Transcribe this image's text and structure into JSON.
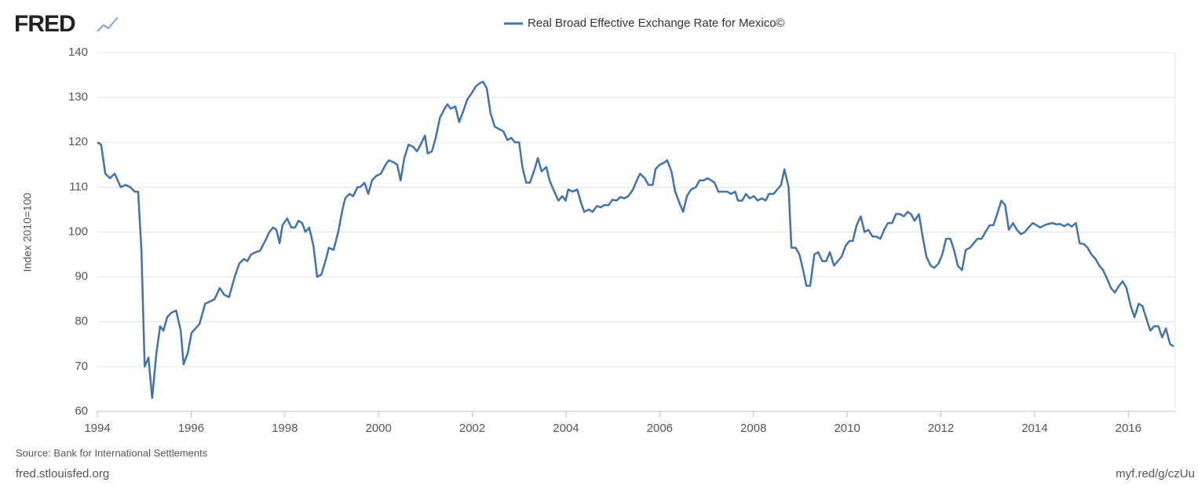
{
  "header": {
    "logo": "FRED"
  },
  "chart_data": {
    "type": "line",
    "y_label": "Index 2010=100",
    "x": [
      1994.0,
      1994.08,
      1994.17,
      1994.27,
      1994.37,
      1994.5,
      1994.6,
      1994.7,
      1994.8,
      1994.87,
      1994.94,
      1995.01,
      1995.09,
      1995.17,
      1995.26,
      1995.34,
      1995.41,
      1995.49,
      1995.58,
      1995.68,
      1995.78,
      1995.84,
      1995.93,
      1996.01,
      1996.18,
      1996.3,
      1996.4,
      1996.5,
      1996.61,
      1996.71,
      1996.81,
      1996.93,
      1997.03,
      1997.13,
      1997.2,
      1997.28,
      1997.38,
      1997.47,
      1997.58,
      1997.67,
      1997.75,
      1997.82,
      1997.89,
      1997.95,
      1998.05,
      1998.14,
      1998.22,
      1998.29,
      1998.37,
      1998.44,
      1998.52,
      1998.61,
      1998.69,
      1998.78,
      1998.88,
      1998.94,
      1999.04,
      1999.14,
      1999.23,
      1999.29,
      1999.38,
      1999.46,
      1999.55,
      1999.61,
      1999.7,
      1999.78,
      1999.86,
      1999.95,
      2000.05,
      2000.15,
      2000.22,
      2000.33,
      2000.4,
      2000.47,
      2000.55,
      2000.64,
      2000.74,
      2000.82,
      2000.9,
      2000.99,
      2001.05,
      2001.14,
      2001.22,
      2001.31,
      2001.41,
      2001.47,
      2001.54,
      2001.64,
      2001.72,
      2001.81,
      2001.89,
      2001.99,
      2002.08,
      2002.16,
      2002.23,
      2002.31,
      2002.39,
      2002.48,
      2002.56,
      2002.66,
      2002.75,
      2002.83,
      2002.91,
      2003.0,
      2003.07,
      2003.15,
      2003.23,
      2003.33,
      2003.4,
      2003.48,
      2003.58,
      2003.65,
      2003.75,
      2003.84,
      2003.92,
      2003.99,
      2004.05,
      2004.14,
      2004.24,
      2004.32,
      2004.39,
      2004.49,
      2004.57,
      2004.66,
      2004.74,
      2004.82,
      2004.91,
      2004.99,
      2005.08,
      2005.16,
      2005.24,
      2005.33,
      2005.43,
      2005.51,
      2005.58,
      2005.68,
      2005.76,
      2005.85,
      2005.91,
      2006.0,
      2006.1,
      2006.16,
      2006.25,
      2006.33,
      2006.42,
      2006.5,
      2006.58,
      2006.67,
      2006.77,
      2006.85,
      2006.94,
      2007.02,
      2007.1,
      2007.17,
      2007.25,
      2007.34,
      2007.44,
      2007.52,
      2007.61,
      2007.67,
      2007.76,
      2007.84,
      2007.92,
      2008.01,
      2008.09,
      2008.18,
      2008.26,
      2008.33,
      2008.43,
      2008.51,
      2008.59,
      2008.66,
      2008.75,
      2008.81,
      2008.9,
      2008.98,
      2009.05,
      2009.13,
      2009.21,
      2009.3,
      2009.38,
      2009.47,
      2009.55,
      2009.63,
      2009.72,
      2009.8,
      2009.88,
      2009.97,
      2010.05,
      2010.12,
      2010.2,
      2010.29,
      2010.37,
      2010.45,
      2010.54,
      2010.62,
      2010.71,
      2010.79,
      2010.87,
      2010.96,
      2011.04,
      2011.12,
      2011.21,
      2011.29,
      2011.36,
      2011.44,
      2011.53,
      2011.61,
      2011.69,
      2011.78,
      2011.86,
      2011.95,
      2012.03,
      2012.11,
      2012.2,
      2012.28,
      2012.36,
      2012.45,
      2012.53,
      2012.62,
      2012.7,
      2012.78,
      2012.87,
      2012.95,
      2013.04,
      2013.12,
      2013.2,
      2013.29,
      2013.37,
      2013.45,
      2013.54,
      2013.62,
      2013.71,
      2013.79,
      2013.87,
      2013.96,
      2014.04,
      2014.12,
      2014.21,
      2014.29,
      2014.38,
      2014.46,
      2014.54,
      2014.63,
      2014.71,
      2014.79,
      2014.88,
      2014.96,
      2015.05,
      2015.13,
      2015.21,
      2015.3,
      2015.38,
      2015.46,
      2015.55,
      2015.63,
      2015.71,
      2015.8,
      2015.88,
      2015.96,
      2016.05,
      2016.13,
      2016.22,
      2016.3,
      2016.39,
      2016.47,
      2016.55,
      2016.64,
      2016.72,
      2016.8,
      2016.89,
      2016.97
    ],
    "series": [
      {
        "name": "Real Broad Effective Exchange Rate for Mexico©",
        "color": "#4572a7",
        "values": [
          120,
          119.5,
          113,
          112,
          113,
          110,
          110.5,
          110,
          109,
          109,
          96,
          70,
          72,
          63,
          73,
          79,
          78,
          81,
          82,
          82.5,
          78,
          70.5,
          73,
          77.5,
          79.5,
          84,
          84.5,
          85,
          87.5,
          86,
          85.5,
          90,
          93,
          94,
          93.5,
          95,
          95.5,
          95.8,
          98,
          100,
          101,
          100.5,
          97.5,
          101.5,
          103,
          101,
          101,
          102.5,
          102,
          100,
          101,
          97,
          90,
          90.5,
          94,
          96.5,
          96,
          100,
          105,
          107.5,
          108.5,
          108,
          110,
          110,
          111,
          108.5,
          111.5,
          112.5,
          113,
          115,
          116,
          115.5,
          115,
          111.5,
          116.5,
          119.5,
          119,
          118,
          119.5,
          121.5,
          117.5,
          118,
          121,
          125.5,
          127.5,
          128.5,
          127.5,
          128,
          124.5,
          127,
          129.5,
          131,
          132.5,
          133.2,
          133.5,
          132,
          126.5,
          123.5,
          123,
          122.5,
          120.5,
          121,
          120,
          120,
          114.5,
          111,
          111,
          114,
          116.5,
          113.5,
          114.5,
          111.5,
          109,
          107,
          108,
          107,
          109.5,
          109,
          109.5,
          106.5,
          104.5,
          105,
          104.5,
          105.8,
          105.5,
          106,
          106,
          107.2,
          107,
          107.8,
          107.5,
          108,
          109.5,
          111.5,
          113,
          112,
          110.5,
          110.5,
          114,
          115,
          115.5,
          116,
          113.5,
          109,
          106.5,
          104.5,
          108,
          109.5,
          110,
          111.5,
          111.5,
          112,
          111.5,
          111,
          109,
          109,
          109,
          108.5,
          109,
          107,
          107,
          108.5,
          107.5,
          108,
          107,
          107.5,
          107,
          108.5,
          108.5,
          109.5,
          110.5,
          114,
          110,
          96.5,
          96.5,
          95,
          92,
          88,
          88,
          95,
          95.5,
          93.5,
          93.5,
          95.5,
          92.5,
          93.5,
          94.5,
          97,
          98,
          98,
          101.5,
          103.5,
          100,
          100.5,
          99,
          99,
          98.5,
          100.5,
          102,
          102,
          104,
          104,
          103.5,
          104.5,
          104,
          102.5,
          104,
          99,
          94.5,
          92.5,
          92,
          93,
          95,
          98.5,
          98.5,
          96,
          92.5,
          91.5,
          96,
          96.5,
          97.5,
          98.5,
          98.5,
          100,
          101.5,
          101.5,
          104,
          107,
          106,
          100.5,
          102,
          100.5,
          99.5,
          100,
          101,
          102,
          101.5,
          101,
          101.5,
          101.8,
          102,
          101.7,
          101.8,
          101.3,
          101.8,
          101.2,
          102,
          97.5,
          97.3,
          96.5,
          95,
          94,
          92.5,
          91.5,
          89.5,
          87.5,
          86.5,
          88,
          89,
          87.5,
          83.5,
          81,
          84,
          83.5,
          80.5,
          78,
          79,
          79,
          76.5,
          78.5,
          75,
          74.5
        ]
      }
    ],
    "xlim": [
      1994,
      2017
    ],
    "xticks": [
      1994,
      1996,
      1998,
      2000,
      2002,
      2004,
      2006,
      2008,
      2010,
      2012,
      2014,
      2016
    ],
    "ylim": [
      60,
      140
    ],
    "yticks": [
      60,
      70,
      80,
      90,
      100,
      110,
      120,
      130,
      140
    ],
    "grid": true,
    "legend": "top"
  },
  "footer": {
    "source": "Source: Bank for International Settlements",
    "site": "fred.stlouisfed.org",
    "short_url": "myf.red/g/czUu"
  }
}
